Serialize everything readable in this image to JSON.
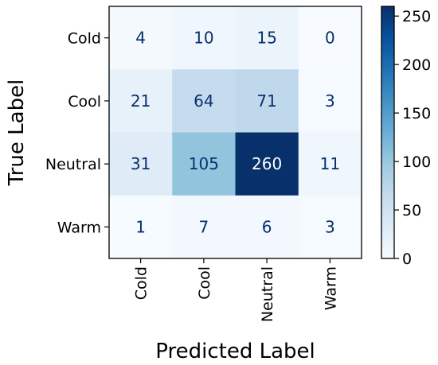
{
  "chart_data": {
    "type": "heatmap",
    "xlabel": "Predicted Label",
    "ylabel": "True Label",
    "x_categories": [
      "Cold",
      "Cool",
      "Neutral",
      "Warm"
    ],
    "y_categories": [
      "Cold",
      "Cool",
      "Neutral",
      "Warm"
    ],
    "values": [
      [
        4,
        10,
        15,
        0
      ],
      [
        21,
        64,
        71,
        3
      ],
      [
        31,
        105,
        260,
        11
      ],
      [
        1,
        7,
        6,
        3
      ]
    ],
    "colormap": "Blues",
    "colorbar": {
      "range": [
        0,
        260
      ],
      "ticks": [
        0,
        50,
        100,
        150,
        200,
        250
      ]
    }
  }
}
